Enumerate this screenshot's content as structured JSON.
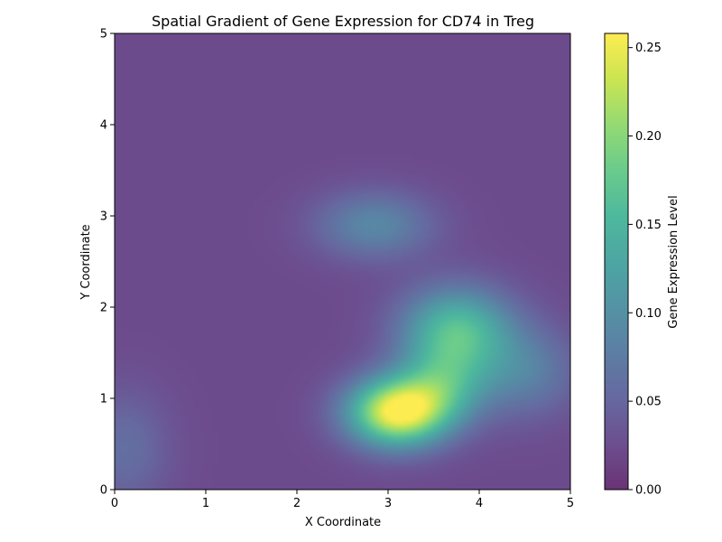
{
  "chart_data": {
    "type": "heatmap",
    "title": "Spatial Gradient of Gene Expression for CD74 in Treg",
    "xlabel": "X Coordinate",
    "ylabel": "Y Coordinate",
    "xlim": [
      0,
      5
    ],
    "ylim": [
      0,
      5
    ],
    "x_ticks": [
      "0",
      "1",
      "2",
      "3",
      "4",
      "5"
    ],
    "y_ticks": [
      "0",
      "1",
      "2",
      "3",
      "4",
      "5"
    ],
    "colorbar": {
      "label": "Gene Expression Level",
      "range": [
        0,
        0.258
      ],
      "ticks": [
        "0.00",
        "0.05",
        "0.10",
        "0.15",
        "0.20",
        "0.25"
      ],
      "colormap": "viridis",
      "alpha": 0.8
    },
    "grid": false,
    "hotspots": [
      {
        "x": 3.1,
        "y": 0.85,
        "value": 0.258
      },
      {
        "x": 3.75,
        "y": 1.75,
        "value": 0.16
      },
      {
        "x": 2.85,
        "y": 2.9,
        "value": 0.09
      },
      {
        "x": 3.6,
        "y": 1.15,
        "value": 0.12
      },
      {
        "x": 4.5,
        "y": 1.3,
        "value": 0.08
      },
      {
        "x": 0.1,
        "y": 0.45,
        "value": 0.06
      }
    ],
    "baseline": 0.022
  }
}
